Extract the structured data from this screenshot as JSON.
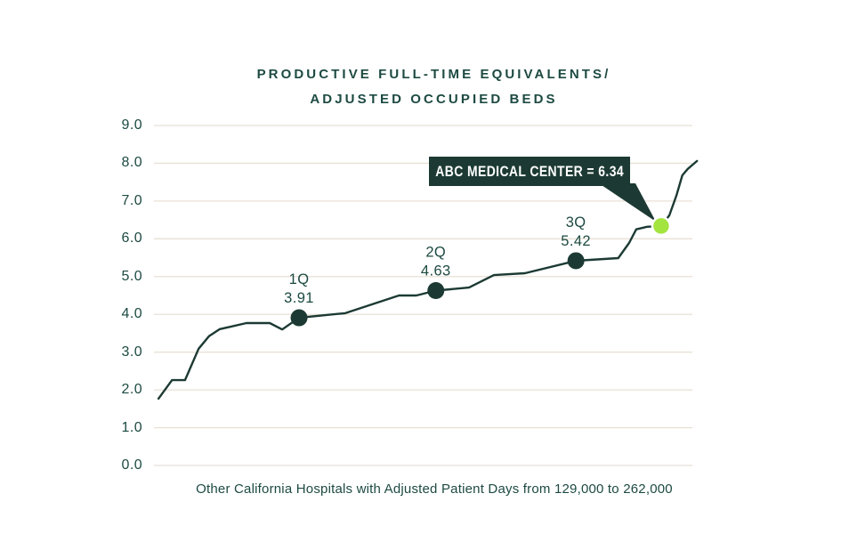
{
  "header": {
    "title_line1": "PRODUCTIVE FULL-TIME EQUIVALENTS/",
    "title_line2": "ADJUSTED OCCUPIED BEDS"
  },
  "callout": {
    "text": "ABC MEDICAL CENTER = 6.34"
  },
  "colors": {
    "ink": "#1c3a33",
    "text": "#1d4a42",
    "grid": "#e8e1d6",
    "highlight_green": "#a3e43f",
    "background": "#ffffff",
    "callout_text": "#ffffff"
  },
  "chart_data": {
    "type": "line",
    "title": "PRODUCTIVE FULL-TIME EQUIVALENTS/ ADJUSTED OCCUPIED BEDS",
    "xlabel": "Other California Hospitals with Adjusted Patient Days from 129,000 to 262,000",
    "ylabel": "",
    "ylim": [
      0,
      9
    ],
    "grid": "horizontal",
    "legend": "none",
    "yticks": [
      "9.0",
      "8.0",
      "7.0",
      "6.0",
      "5.0",
      "4.0",
      "3.0",
      "2.0",
      "1.0",
      "0.0"
    ],
    "series": [
      {
        "name": "Other California Hospitals (sorted ascending)",
        "x_frac": [
          0.005,
          0.03,
          0.054,
          0.079,
          0.098,
          0.118,
          0.167,
          0.21,
          0.233,
          0.264,
          0.349,
          0.448,
          0.48,
          0.516,
          0.577,
          0.623,
          0.68,
          0.774,
          0.852,
          0.872,
          0.885,
          0.905,
          0.931,
          0.946,
          0.959,
          0.97,
          0.98,
          0.997
        ],
        "values": [
          1.77,
          2.26,
          2.26,
          3.09,
          3.42,
          3.61,
          3.77,
          3.77,
          3.6,
          3.91,
          4.03,
          4.5,
          4.5,
          4.63,
          4.71,
          5.04,
          5.09,
          5.42,
          5.49,
          5.89,
          6.25,
          6.32,
          6.34,
          6.62,
          7.14,
          7.68,
          7.85,
          8.06
        ]
      }
    ],
    "markers": [
      {
        "name": "first-quartile",
        "label": "1Q",
        "value_label": "3.91",
        "value": 3.91,
        "index": 9,
        "highlight": false
      },
      {
        "name": "second-quartile",
        "label": "2Q",
        "value_label": "4.63",
        "value": 4.63,
        "index": 13,
        "highlight": false
      },
      {
        "name": "third-quartile",
        "label": "3Q",
        "value_label": "5.42",
        "value": 5.42,
        "index": 17,
        "highlight": false
      },
      {
        "name": "abc-medical-center",
        "label": "",
        "value_label": "",
        "value": 6.34,
        "index": 22,
        "highlight": true
      }
    ],
    "annotation": {
      "text": "ABC MEDICAL CENTER = 6.34",
      "value": 6.34
    }
  }
}
